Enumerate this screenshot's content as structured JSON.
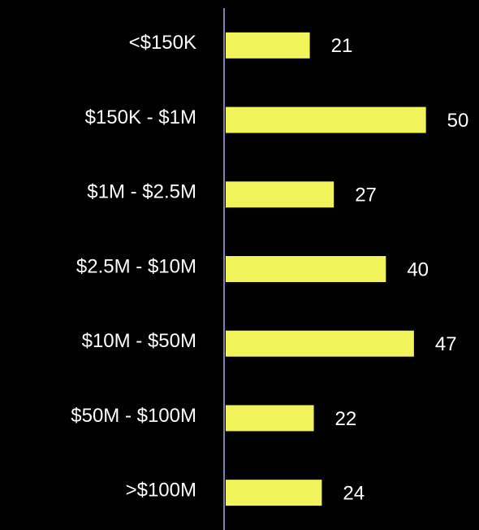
{
  "chart_data": {
    "type": "hbar",
    "categories": [
      "<$150K",
      "$150K - $1M",
      "$1M - $2.5M",
      "$2.5M - $10M",
      "$10M - $50M",
      "$50M - $100M",
      ">$100M"
    ],
    "values": [
      21,
      50,
      27,
      40,
      47,
      22,
      24
    ],
    "color": "#f0f35a",
    "xlim": [
      0,
      60
    ]
  }
}
